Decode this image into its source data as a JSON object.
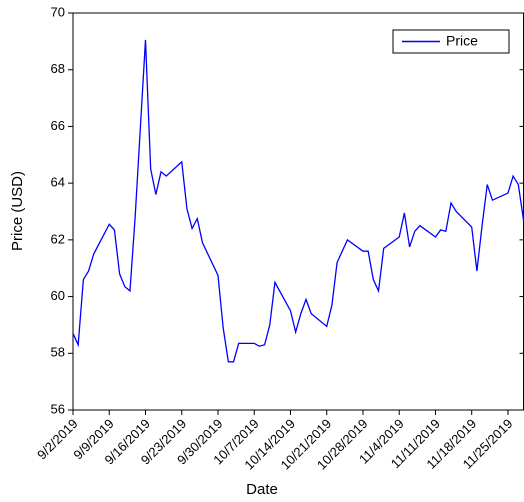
{
  "chart_data": {
    "type": "line",
    "x_label": "Date",
    "y_label": "Price (USD)",
    "x": [
      "2019-09-02",
      "2019-09-03",
      "2019-09-04",
      "2019-09-05",
      "2019-09-06",
      "2019-09-09",
      "2019-09-10",
      "2019-09-11",
      "2019-09-12",
      "2019-09-13",
      "2019-09-14",
      "2019-09-16",
      "2019-09-17",
      "2019-09-18",
      "2019-09-19",
      "2019-09-20",
      "2019-09-23",
      "2019-09-24",
      "2019-09-25",
      "2019-09-26",
      "2019-09-27",
      "2019-09-30",
      "2019-10-01",
      "2019-10-02",
      "2019-10-03",
      "2019-10-04",
      "2019-10-07",
      "2019-10-08",
      "2019-10-09",
      "2019-10-10",
      "2019-10-11",
      "2019-10-14",
      "2019-10-15",
      "2019-10-16",
      "2019-10-17",
      "2019-10-18",
      "2019-10-21",
      "2019-10-22",
      "2019-10-23",
      "2019-10-24",
      "2019-10-25",
      "2019-10-28",
      "2019-10-29",
      "2019-10-30",
      "2019-10-31",
      "2019-11-01",
      "2019-11-04",
      "2019-11-05",
      "2019-11-06",
      "2019-11-07",
      "2019-11-08",
      "2019-11-11",
      "2019-11-12",
      "2019-11-13",
      "2019-11-14",
      "2019-11-15",
      "2019-11-18",
      "2019-11-19",
      "2019-11-20",
      "2019-11-21",
      "2019-11-22",
      "2019-11-25",
      "2019-11-26",
      "2019-11-27",
      "2019-11-28"
    ],
    "series": [
      {
        "name": "Price",
        "color": "#0000ff",
        "values": [
          58.7,
          58.3,
          60.6,
          60.9,
          61.5,
          62.55,
          62.35,
          60.8,
          60.35,
          60.2,
          62.8,
          69.05,
          64.5,
          63.6,
          64.4,
          64.25,
          64.75,
          63.1,
          62.4,
          62.75,
          61.9,
          60.75,
          58.9,
          57.7,
          57.7,
          58.35,
          58.35,
          58.25,
          58.3,
          59.0,
          60.5,
          59.5,
          58.75,
          59.4,
          59.9,
          59.4,
          58.95,
          59.7,
          61.2,
          61.6,
          62.0,
          61.6,
          61.6,
          60.6,
          60.2,
          61.7,
          62.1,
          62.95,
          61.75,
          62.3,
          62.5,
          62.1,
          62.35,
          62.3,
          63.3,
          63.0,
          62.45,
          60.9,
          62.5,
          63.95,
          63.4,
          63.65,
          64.25,
          63.95,
          62.7
        ]
      }
    ],
    "xlim": [
      "2019-09-02",
      "2019-11-28"
    ],
    "xticks": [
      {
        "value": "2019-09-02",
        "label": "9/2/2019"
      },
      {
        "value": "2019-09-09",
        "label": "9/9/2019"
      },
      {
        "value": "2019-09-16",
        "label": "9/16/2019"
      },
      {
        "value": "2019-09-23",
        "label": "9/23/2019"
      },
      {
        "value": "2019-09-30",
        "label": "9/30/2019"
      },
      {
        "value": "2019-10-07",
        "label": "10/7/2019"
      },
      {
        "value": "2019-10-14",
        "label": "10/14/2019"
      },
      {
        "value": "2019-10-21",
        "label": "10/21/2019"
      },
      {
        "value": "2019-10-28",
        "label": "10/28/2019"
      },
      {
        "value": "2019-11-04",
        "label": "11/4/2019"
      },
      {
        "value": "2019-11-11",
        "label": "11/11/2019"
      },
      {
        "value": "2019-11-18",
        "label": "11/18/2019"
      },
      {
        "value": "2019-11-25",
        "label": "11/25/2019"
      }
    ],
    "ylim": [
      56,
      70
    ],
    "yticks": [
      56,
      58,
      60,
      62,
      64,
      66,
      68,
      70
    ],
    "grid": false,
    "legend": "upper right"
  }
}
